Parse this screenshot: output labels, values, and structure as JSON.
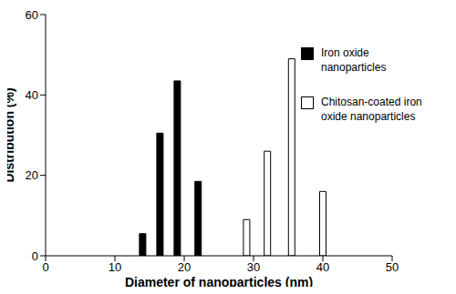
{
  "chart_data": {
    "type": "bar",
    "x_label": "Diameter of nanoparticles (nm)",
    "y_label": "Distribution (%)",
    "xlim": [
      0,
      50
    ],
    "xticks": [
      0,
      10,
      20,
      30,
      40,
      50
    ],
    "ylim": [
      0,
      60
    ],
    "yticks": [
      0,
      20,
      40,
      60
    ],
    "legend": "upper right",
    "series": [
      {
        "name": "Iron oxide nanoparticles",
        "color": "#000000",
        "x": [
          14,
          16.5,
          19,
          22
        ],
        "values": [
          5.5,
          30.5,
          43.5,
          18.5
        ]
      },
      {
        "name": "Chitosan-coated iron oxide nanoparticles",
        "color": "#ffffff",
        "x": [
          29,
          32,
          35.5,
          40
        ],
        "values": [
          9,
          26,
          49,
          16
        ]
      }
    ]
  }
}
